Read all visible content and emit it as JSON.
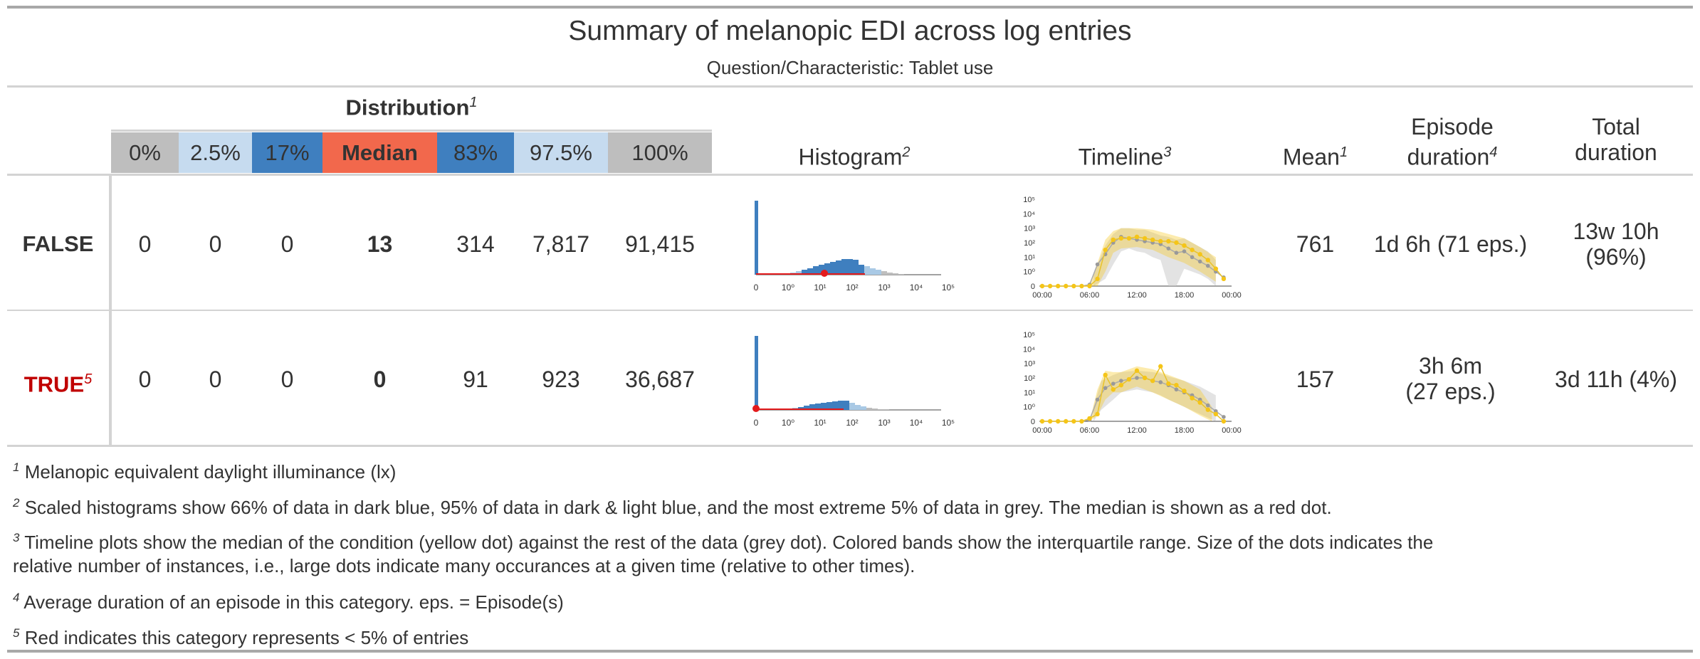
{
  "title": "Summary of melanopic EDI across log entries",
  "subtitle": "Question/Characteristic: Tablet use",
  "distribution": {
    "label": "Distribution",
    "footnote_mark": "1",
    "percentiles": [
      {
        "label": "0%",
        "color": "#bebebe"
      },
      {
        "label": "2.5%",
        "color": "#c6dbef"
      },
      {
        "label": "17%",
        "color": "#3f7fbf"
      },
      {
        "label": "Median",
        "color": "#f2684c"
      },
      {
        "label": "83%",
        "color": "#3f7fbf"
      },
      {
        "label": "97.5%",
        "color": "#c6dbef"
      },
      {
        "label": "100%",
        "color": "#bebebe"
      }
    ]
  },
  "columns": {
    "histogram": {
      "label": "Histogram",
      "footnote_mark": "2"
    },
    "timeline": {
      "label": "Timeline",
      "footnote_mark": "3"
    },
    "mean": {
      "label": "Mean",
      "footnote_mark": "1"
    },
    "episode": {
      "label_line1": "Episode",
      "label_line2": "duration",
      "footnote_mark": "4"
    },
    "total": {
      "label_line1": "Total",
      "label_line2": "duration"
    }
  },
  "rows": [
    {
      "label": "FALSE",
      "label_color": "#333333",
      "footnote_mark": "",
      "values": [
        "0",
        "0",
        "0",
        "13",
        "314",
        "7,817",
        "91,415"
      ],
      "mean": "761",
      "episode": "1d 6h (71 eps.)",
      "total_line1": "13w 10h",
      "total_line2": "(96%)"
    },
    {
      "label": "TRUE",
      "label_color": "#c00000",
      "footnote_mark": "5",
      "values": [
        "0",
        "0",
        "0",
        "0",
        "91",
        "923",
        "36,687"
      ],
      "mean": "157",
      "episode_line1": "3h 6m",
      "episode_line2": "(27 eps.)",
      "total": "3d 11h (4%)"
    }
  ],
  "histogram_axis": {
    "ticks": [
      "0",
      "10⁰",
      "10¹",
      "10²",
      "10³",
      "10⁴",
      "10⁵"
    ]
  },
  "timeline_axis": {
    "x_ticks": [
      "00:00",
      "06:00",
      "12:00",
      "18:00",
      "00:00"
    ],
    "y_ticks": [
      "0",
      "10⁰",
      "10¹",
      "10²",
      "10³",
      "10⁴",
      "10⁵"
    ]
  },
  "colors": {
    "dark_blue": "#3f7fbf",
    "light_blue": "#a9c9e5",
    "grey": "#bebebe",
    "red": "#e31a1c",
    "yellow": "#f5c518",
    "rule": "#a0a0a0"
  },
  "footnotes": [
    {
      "mark": "1",
      "text": "Melanopic equivalent daylight illuminance (lx)"
    },
    {
      "mark": "2",
      "text": "Scaled histograms show 66% of data in dark blue, 95% of data in dark & light blue, and the most extreme 5% of data in grey. The median is shown as a red dot."
    },
    {
      "mark": "3",
      "text_line1": "Timeline plots show the median of the condition (yellow dot) against the rest of the data (grey dot). Colored bands show the interquartile range. Size of the dots indicates the",
      "text_line2": "relative number of instances, i.e., large dots indicate many occurances at a given time (relative to other times)."
    },
    {
      "mark": "4",
      "text": "Average duration of an episode in this category. eps. = Episode(s)"
    },
    {
      "mark": "5",
      "text": "Red indicates this category represents < 5% of entries"
    }
  ]
}
